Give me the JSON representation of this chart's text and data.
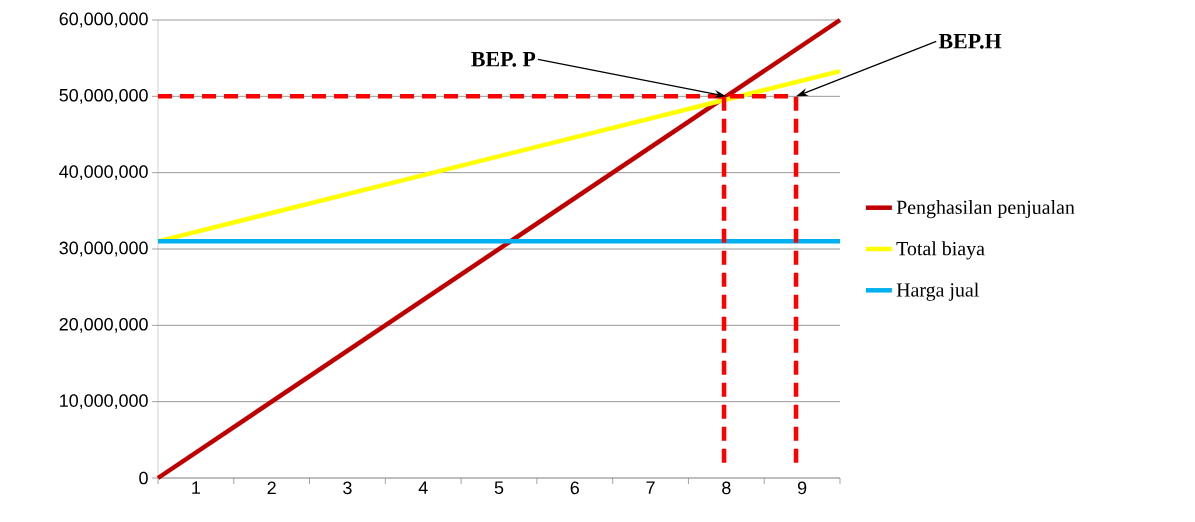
{
  "chart_data": {
    "type": "line",
    "xlim": [
      0.5,
      9.5
    ],
    "ylim": [
      0,
      60000000
    ],
    "xticks": [
      {
        "value": 0.5,
        "label": null
      },
      1,
      {
        "value": 1.5,
        "label": null
      },
      2,
      {
        "value": 2.5,
        "label": null
      },
      3,
      {
        "value": 3.5,
        "label": null
      },
      4,
      {
        "value": 4.5,
        "label": null
      },
      5,
      {
        "value": 5.5,
        "label": null
      },
      6,
      {
        "value": 6.5,
        "label": null
      },
      7,
      {
        "value": 7.5,
        "label": null
      },
      8,
      {
        "value": 8.5,
        "label": null
      },
      9,
      {
        "value": 9.5,
        "label": null
      }
    ],
    "yticks": [
      0,
      {
        "value": 10000000,
        "label": "10,000,000"
      },
      {
        "value": 20000000,
        "label": "20,000,000"
      },
      {
        "value": 30000000,
        "label": "30,000,000"
      },
      {
        "value": 40000000,
        "label": "40,000,000"
      },
      {
        "value": 50000000,
        "label": "50,000,000"
      },
      {
        "value": 60000000,
        "label": "60,000,000"
      }
    ],
    "grid": "y",
    "legend": "right",
    "marker": "none",
    "series": [
      {
        "name": "Penghasilan penjualan",
        "color": "#c00000",
        "x": [
          0.5,
          9.5
        ],
        "values": [
          0,
          60000000
        ]
      },
      {
        "name": "Total biaya",
        "color": "#ffff00",
        "x": [
          0.5,
          9.5
        ],
        "values": [
          31000000,
          53300000
        ]
      },
      {
        "name": "Harga jual",
        "color": "#00b0f0",
        "x": [
          0.5,
          9.5
        ],
        "values": [
          31000000,
          31000000
        ]
      },
      {
        "color": "#ff0000",
        "line_style": "dashed",
        "x": [
          0.5,
          8.92
        ],
        "values": [
          50000000,
          50000000
        ]
      },
      {
        "color": "#ff0000",
        "line_style": "dashed",
        "x": [
          7.97,
          7.97
        ],
        "values": [
          2000000,
          50000000
        ]
      },
      {
        "color": "#ff0000",
        "line_style": "dashed",
        "x": [
          8.92,
          8.92
        ],
        "values": [
          2000000,
          50000000
        ]
      }
    ],
    "annotations": [
      {
        "text": "BEP. P",
        "x": 8,
        "y": 50000000
      },
      {
        "text": "BEP.H",
        "x": 8.92,
        "y": 50000000
      }
    ]
  }
}
